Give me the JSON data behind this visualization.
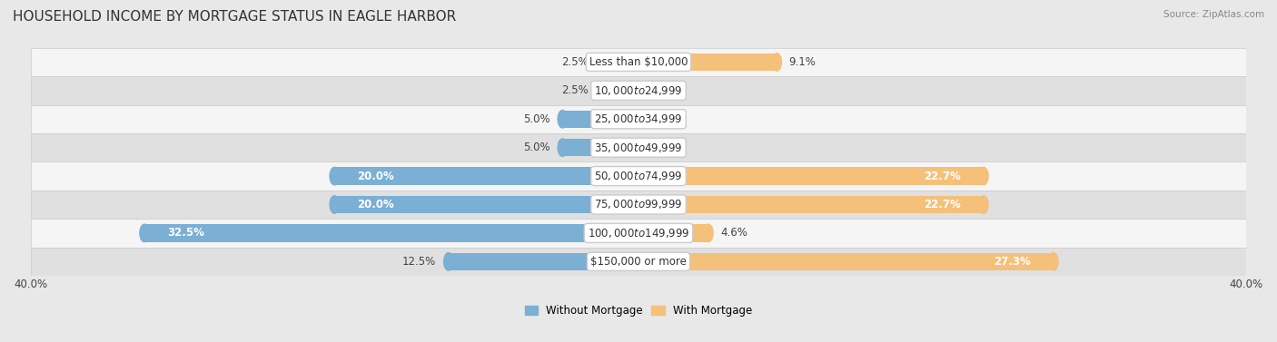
{
  "title": "HOUSEHOLD INCOME BY MORTGAGE STATUS IN EAGLE HARBOR",
  "source": "Source: ZipAtlas.com",
  "categories": [
    "Less than $10,000",
    "$10,000 to $24,999",
    "$25,000 to $34,999",
    "$35,000 to $49,999",
    "$50,000 to $74,999",
    "$75,000 to $99,999",
    "$100,000 to $149,999",
    "$150,000 or more"
  ],
  "without_mortgage": [
    2.5,
    2.5,
    5.0,
    5.0,
    20.0,
    20.0,
    32.5,
    12.5
  ],
  "with_mortgage": [
    9.1,
    0.0,
    0.0,
    0.0,
    22.7,
    22.7,
    4.6,
    27.3
  ],
  "without_mortgage_color": "#7BAFD4",
  "with_mortgage_color": "#F5C07A",
  "background_color": "#e8e8e8",
  "row_bg_even": "#f5f5f5",
  "row_bg_odd": "#e0e0e0",
  "axis_limit": 40.0,
  "legend_labels": [
    "Without Mortgage",
    "With Mortgage"
  ],
  "title_fontsize": 11,
  "label_fontsize": 8.5,
  "cat_fontsize": 8.5,
  "bar_height": 0.62
}
